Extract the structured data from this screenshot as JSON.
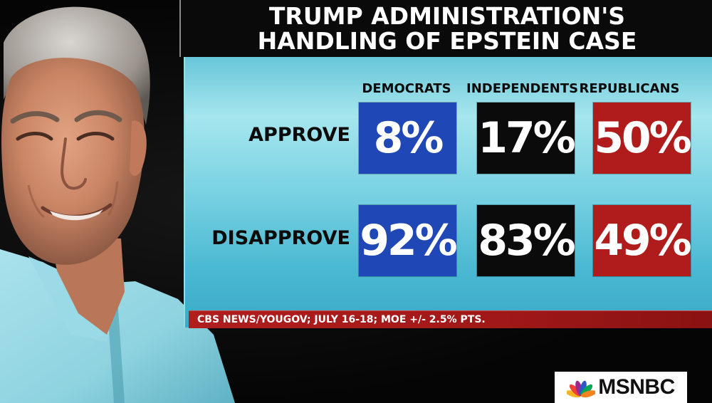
{
  "headline": {
    "line1": "TRUMP ADMINISTRATION'S",
    "line2": "HANDLING OF EPSTEIN CASE"
  },
  "chart_data": {
    "type": "table",
    "title": "TRUMP ADMINISTRATION'S HANDLING OF EPSTEIN CASE",
    "columns": [
      "DEMOCRATS",
      "INDEPENDENTS",
      "REPUBLICANS"
    ],
    "rows": [
      {
        "label": "APPROVE",
        "values": [
          8,
          17,
          50
        ],
        "display": [
          "8%",
          "17%",
          "50%"
        ]
      },
      {
        "label": "DISAPPROVE",
        "values": [
          92,
          83,
          49
        ],
        "display": [
          "92%",
          "83%",
          "49%"
        ]
      }
    ],
    "unit": "%",
    "column_colors": [
      "#1f47b6",
      "#0b0b0b",
      "#b01c1c"
    ]
  },
  "source": "CBS NEWS/YOUGOV; JULY 16-18; MOE +/- 2.5% PTS.",
  "logo": {
    "text": "MSNBC",
    "icon": "peacock-icon",
    "feather_colors": [
      "#f7b321",
      "#ef4136",
      "#a3238e",
      "#2b59c3",
      "#00a651",
      "#f58220"
    ]
  },
  "photo": {
    "icon": "portrait-photo"
  }
}
